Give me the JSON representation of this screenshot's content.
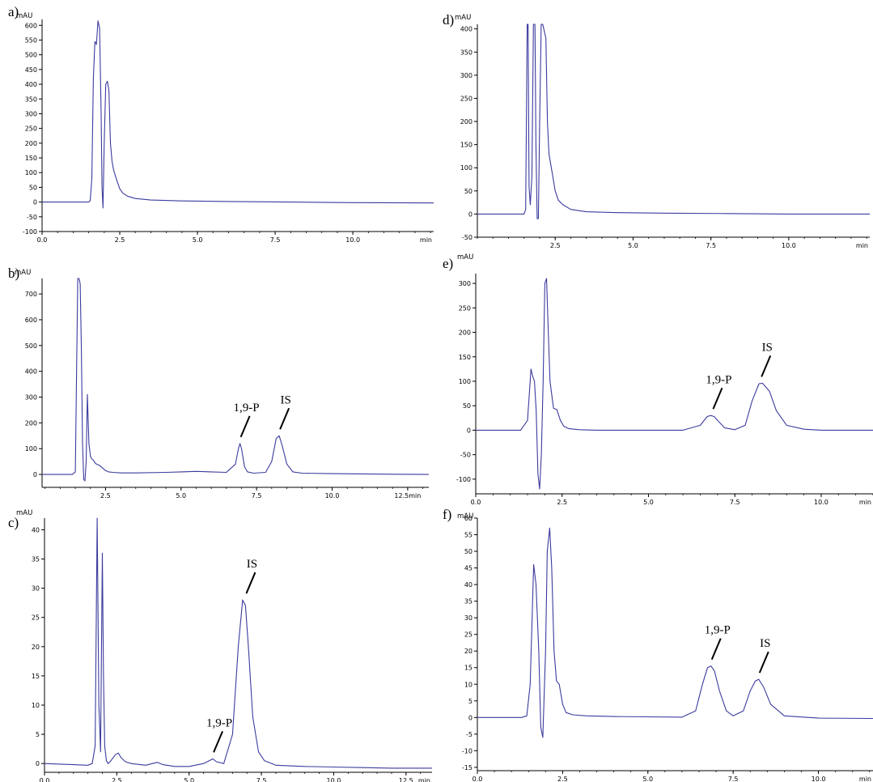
{
  "chart_data": [
    {
      "panel": "a)",
      "type": "line",
      "yunit": "mAU",
      "xunit": "min",
      "xlim": [
        0,
        12.6
      ],
      "ylim": [
        -100,
        620
      ],
      "xticks": [
        "0.0",
        "2.5",
        "5.0",
        "7.5",
        "10.0"
      ],
      "yticks": [
        "-100",
        "-50",
        "0",
        "50",
        "100",
        "150",
        "200",
        "250",
        "300",
        "350",
        "400",
        "450",
        "500",
        "550",
        "600"
      ],
      "color": "#3b3b9e",
      "series": [
        {
          "x": [
            0.0,
            1.5,
            1.55,
            1.6,
            1.65,
            1.7,
            1.75,
            1.8,
            1.85,
            1.9,
            1.93,
            1.96,
            2.0,
            2.05,
            2.1,
            2.15,
            2.2,
            2.25,
            2.3,
            2.4,
            2.5,
            2.6,
            2.75,
            3.0,
            3.5,
            4.5,
            6.0,
            8.0,
            10.0,
            12.6
          ],
          "y": [
            0,
            0,
            5,
            80,
            420,
            545,
            535,
            615,
            590,
            300,
            50,
            -20,
            200,
            400,
            410,
            380,
            200,
            140,
            110,
            75,
            45,
            30,
            20,
            12,
            7,
            4,
            2,
            0,
            -2,
            -3
          ]
        }
      ],
      "annotations": []
    },
    {
      "panel": "b)",
      "type": "line",
      "yunit": "mAU",
      "xunit": "min",
      "xlim": [
        0.4,
        13.2
      ],
      "ylim": [
        -50,
        760
      ],
      "xticks": [
        "2.5",
        "5.0",
        "7.5",
        "10.0",
        "12.5min"
      ],
      "yticks": [
        "0",
        "100",
        "200",
        "300",
        "400",
        "500",
        "600",
        "700"
      ],
      "color": "#3b3b9e",
      "series": [
        {
          "x": [
            0.4,
            1.4,
            1.5,
            1.58,
            1.62,
            1.66,
            1.7,
            1.74,
            1.78,
            1.82,
            1.86,
            1.9,
            1.95,
            2.0,
            2.05,
            2.1,
            2.15,
            2.2,
            2.3,
            2.4,
            2.5,
            2.6,
            2.75,
            3.0,
            3.5,
            4.5,
            5.0,
            5.5,
            6.0,
            6.5,
            6.8,
            6.9,
            6.95,
            7.0,
            7.1,
            7.2,
            7.4,
            7.8,
            8.0,
            8.15,
            8.25,
            8.35,
            8.5,
            8.7,
            9.0,
            10.0,
            11.0,
            12.0,
            13.2
          ],
          "y": [
            0,
            0,
            10,
            760,
            760,
            740,
            500,
            120,
            -20,
            -25,
            50,
            310,
            120,
            70,
            60,
            55,
            45,
            40,
            35,
            25,
            15,
            10,
            8,
            6,
            6,
            8,
            10,
            12,
            10,
            8,
            40,
            100,
            120,
            100,
            30,
            10,
            5,
            8,
            50,
            140,
            150,
            110,
            40,
            10,
            5,
            3,
            2,
            1,
            0
          ]
        }
      ],
      "annotations": [
        {
          "label": "1,9-P",
          "x": 6.95,
          "y": 120
        },
        {
          "label": "IS",
          "x": 8.25,
          "y": 150
        }
      ]
    },
    {
      "panel": "c)",
      "type": "line",
      "yunit": "mAU",
      "xunit": "min",
      "xlim": [
        0.0,
        13.4
      ],
      "ylim": [
        -1.5,
        42
      ],
      "xticks": [
        "0.0",
        "2.5",
        "5.0",
        "7.5",
        "10.0",
        "12.5"
      ],
      "yticks": [
        "0",
        "5",
        "10",
        "15",
        "20",
        "25",
        "30",
        "35",
        "40"
      ],
      "color": "#3b3b9e",
      "series": [
        {
          "x": [
            0.0,
            1.0,
            1.5,
            1.65,
            1.75,
            1.82,
            1.88,
            1.94,
            2.0,
            2.04,
            2.08,
            2.14,
            2.2,
            2.3,
            2.45,
            2.55,
            2.65,
            2.8,
            3.0,
            3.5,
            3.9,
            4.1,
            4.5,
            5.0,
            5.5,
            5.7,
            5.82,
            5.95,
            6.2,
            6.5,
            6.7,
            6.85,
            6.95,
            7.05,
            7.2,
            7.4,
            7.6,
            8.0,
            9.0,
            10.0,
            11.0,
            12.0,
            13.4
          ],
          "y": [
            0,
            -0.2,
            -0.3,
            0,
            3,
            42,
            10,
            2,
            36,
            15,
            3,
            0.5,
            0,
            0.5,
            1.5,
            1.8,
            1,
            0.3,
            0,
            -0.3,
            0.2,
            -0.2,
            -0.5,
            -0.5,
            0,
            0.5,
            0.8,
            0.3,
            0,
            5,
            20,
            28,
            27,
            20,
            8,
            2,
            0.5,
            -0.3,
            -0.5,
            -0.6,
            -0.7,
            -0.8,
            -0.8
          ]
        }
      ],
      "annotations": [
        {
          "label": "1,9-P",
          "x": 5.82,
          "y": 0.8
        },
        {
          "label": "IS",
          "x": 6.95,
          "y": 28
        }
      ]
    },
    {
      "panel": "d)",
      "type": "line",
      "yunit": "mAU",
      "xunit": "min",
      "xlim": [
        0.0,
        12.6
      ],
      "ylim": [
        -50,
        410
      ],
      "xticks": [
        "2.5",
        "5.0",
        "7.5",
        "10.0"
      ],
      "yticks": [
        "-50",
        "0",
        "50",
        "100",
        "150",
        "200",
        "250",
        "300",
        "350",
        "400"
      ],
      "color": "#3b3b9e",
      "series": [
        {
          "x": [
            0.0,
            1.5,
            1.55,
            1.6,
            1.63,
            1.66,
            1.7,
            1.75,
            1.8,
            1.85,
            1.88,
            1.92,
            1.96,
            2.0,
            2.05,
            2.1,
            2.2,
            2.25,
            2.3,
            2.4,
            2.5,
            2.6,
            2.75,
            3.0,
            3.5,
            4.5,
            6.0,
            8.0,
            10.0,
            12.6
          ],
          "y": [
            0,
            0,
            10,
            410,
            410,
            60,
            20,
            80,
            410,
            410,
            150,
            -10,
            -10,
            200,
            410,
            410,
            380,
            200,
            130,
            90,
            50,
            30,
            20,
            10,
            5,
            3,
            2,
            1,
            0,
            0
          ]
        }
      ],
      "annotations": []
    },
    {
      "panel": "e)",
      "type": "line",
      "yunit": "mAU",
      "xunit": "min",
      "xlim": [
        0.0,
        11.5
      ],
      "ylim": [
        -130,
        320
      ],
      "xticks": [
        "0.0",
        "2.5",
        "5.0",
        "7.5",
        "10.0"
      ],
      "yticks": [
        "-100",
        "-50",
        "0",
        "50",
        "100",
        "150",
        "200",
        "250",
        "300"
      ],
      "color": "#3b3b9e",
      "series": [
        {
          "x": [
            0.0,
            1.3,
            1.5,
            1.6,
            1.65,
            1.7,
            1.75,
            1.8,
            1.85,
            1.9,
            1.95,
            2.0,
            2.05,
            2.1,
            2.15,
            2.25,
            2.35,
            2.45,
            2.55,
            2.7,
            3.0,
            3.5,
            4.5,
            6.0,
            6.5,
            6.7,
            6.8,
            6.9,
            7.0,
            7.2,
            7.5,
            7.8,
            8.0,
            8.2,
            8.3,
            8.5,
            8.7,
            9.0,
            9.5,
            10.0,
            11.5
          ],
          "y": [
            0,
            0,
            20,
            125,
            110,
            100,
            40,
            -90,
            -120,
            -50,
            100,
            300,
            310,
            200,
            100,
            45,
            42,
            20,
            8,
            3,
            1,
            0,
            0,
            0,
            10,
            28,
            30,
            28,
            20,
            5,
            1,
            10,
            60,
            95,
            96,
            80,
            40,
            10,
            2,
            0,
            0
          ]
        }
      ],
      "annotations": [
        {
          "label": "1,9-P",
          "x": 6.85,
          "y": 30
        },
        {
          "label": "IS",
          "x": 8.25,
          "y": 96
        }
      ]
    },
    {
      "panel": "f)",
      "type": "line",
      "yunit": "mAU",
      "xunit": "min",
      "xlim": [
        0.0,
        11.6
      ],
      "ylim": [
        -16,
        60
      ],
      "xticks": [
        "0.0",
        "2.5",
        "5.0",
        "7.5",
        "10.0"
      ],
      "yticks": [
        "-15",
        "-10",
        "-5",
        "0",
        "5",
        "10",
        "15",
        "20",
        "25",
        "30",
        "35",
        "40",
        "45",
        "50",
        "55",
        "60"
      ],
      "color": "#3b3b9e",
      "series": [
        {
          "x": [
            0.0,
            1.3,
            1.45,
            1.55,
            1.65,
            1.72,
            1.8,
            1.86,
            1.92,
            2.0,
            2.05,
            2.12,
            2.18,
            2.25,
            2.32,
            2.4,
            2.5,
            2.6,
            2.8,
            3.2,
            4.0,
            5.0,
            6.0,
            6.4,
            6.6,
            6.75,
            6.85,
            6.95,
            7.1,
            7.3,
            7.5,
            7.8,
            8.0,
            8.15,
            8.25,
            8.4,
            8.6,
            9.0,
            10.0,
            11.6
          ],
          "y": [
            0,
            0,
            0.5,
            10,
            46,
            40,
            20,
            -3,
            -6,
            20,
            50,
            57,
            45,
            20,
            11,
            10,
            4,
            1.5,
            0.8,
            0.5,
            0.3,
            0.2,
            0.1,
            2,
            10,
            15,
            15.5,
            14,
            8,
            2,
            0.5,
            2,
            8,
            11,
            11.5,
            9,
            4,
            0.5,
            -0.2,
            -0.3
          ]
        }
      ],
      "annotations": [
        {
          "label": "1,9-P",
          "x": 6.85,
          "y": 15.5
        },
        {
          "label": "IS",
          "x": 8.25,
          "y": 11.5
        }
      ]
    }
  ]
}
